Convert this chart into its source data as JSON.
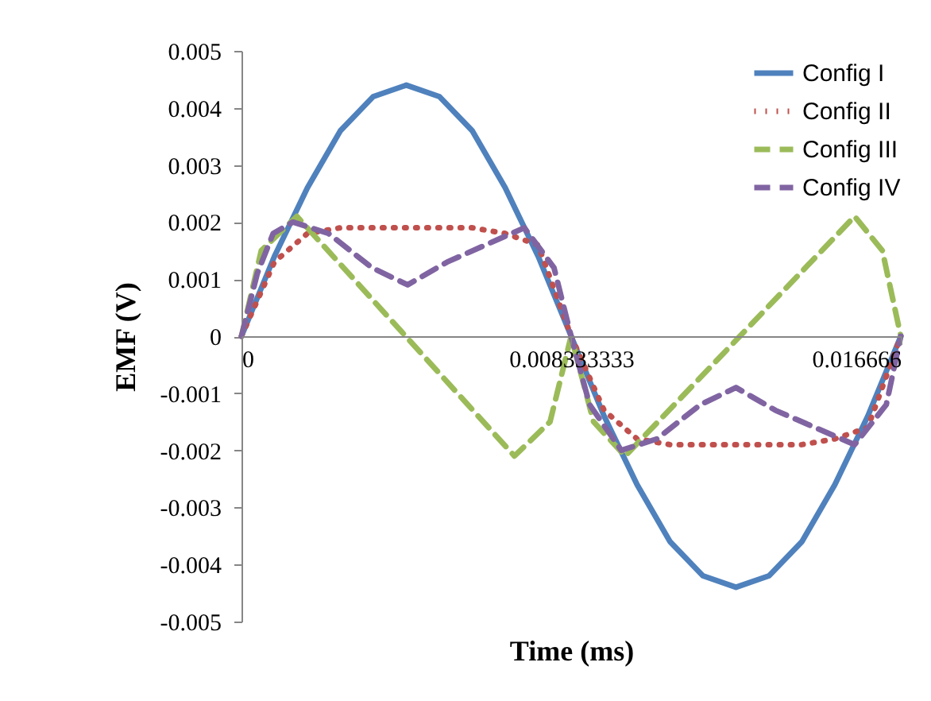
{
  "chart_data": {
    "type": "line",
    "xlabel": "Time (ms)",
    "ylabel": "EMF (V)",
    "xlim": [
      0,
      0.016667
    ],
    "xticks": [
      0,
      0.008333333,
      0.016666
    ],
    "ylim": [
      -0.005,
      0.005
    ],
    "yticks": [
      -0.005,
      -0.004,
      -0.003,
      -0.002,
      -0.001,
      0,
      0.001,
      0.002,
      0.003,
      0.004,
      0.005
    ],
    "grid": false,
    "legend": "top right",
    "marker": "none",
    "series": [
      {
        "name": "Config I",
        "color": "#4f81bd",
        "line_style": "solid",
        "x": [
          0,
          0.000833,
          0.001667,
          0.0025,
          0.003333,
          0.004167,
          0.005,
          0.005833,
          0.006667,
          0.0075,
          0.008333,
          0.009167,
          0.01,
          0.010833,
          0.011667,
          0.0125,
          0.013333,
          0.014167,
          0.015,
          0.015833,
          0.016667
        ],
        "values": [
          0,
          0.0014,
          0.0026,
          0.0036,
          0.0042,
          0.0044,
          0.0042,
          0.0036,
          0.0026,
          0.0014,
          0,
          -0.0014,
          -0.0026,
          -0.0036,
          -0.0042,
          -0.0044,
          -0.0042,
          -0.0036,
          -0.0026,
          -0.0014,
          0
        ]
      },
      {
        "name": "Config II",
        "color": "#c0504d",
        "line_style": "dotted",
        "x": [
          0,
          0.000833,
          0.001667,
          0.0025,
          0.003333,
          0.004167,
          0.005,
          0.005833,
          0.006667,
          0.0075,
          0.008333,
          0.009167,
          0.01,
          0.010833,
          0.011667,
          0.0125,
          0.013333,
          0.014167,
          0.015,
          0.015833,
          0.016667
        ],
        "values": [
          0,
          0.0013,
          0.0018,
          0.0019,
          0.0019,
          0.0019,
          0.0019,
          0.0019,
          0.0018,
          0.0016,
          0,
          -0.0013,
          -0.0018,
          -0.0019,
          -0.0019,
          -0.0019,
          -0.0019,
          -0.0019,
          -0.0018,
          -0.0016,
          0
        ]
      },
      {
        "name": "Config III",
        "color": "#9bbb59",
        "line_style": "dashed",
        "x": [
          0,
          0.0005,
          0.0014,
          0.0069,
          0.0078,
          0.008333,
          0.0089,
          0.0097,
          0.0155,
          0.0162,
          0.016667
        ],
        "values": [
          0,
          0.0015,
          0.0021,
          -0.0021,
          -0.0015,
          0,
          -0.0015,
          -0.0021,
          0.0021,
          0.0015,
          0
        ]
      },
      {
        "name": "Config IV",
        "color": "#8064a2",
        "line_style": "dashed",
        "x": [
          0,
          0.0004,
          0.0008,
          0.0013,
          0.0022,
          0.0033,
          0.0042,
          0.0052,
          0.00715,
          0.0079,
          0.008333,
          0.0088,
          0.0096,
          0.0105,
          0.0116,
          0.0125,
          0.0135,
          0.0155,
          0.0163,
          0.016667
        ],
        "values": [
          0,
          0.0011,
          0.0018,
          0.002,
          0.0018,
          0.0012,
          0.0009,
          0.0013,
          0.0019,
          0.0012,
          0,
          -0.0012,
          -0.002,
          -0.0018,
          -0.0012,
          -0.0009,
          -0.0013,
          -0.0019,
          -0.0012,
          0
        ]
      }
    ]
  }
}
